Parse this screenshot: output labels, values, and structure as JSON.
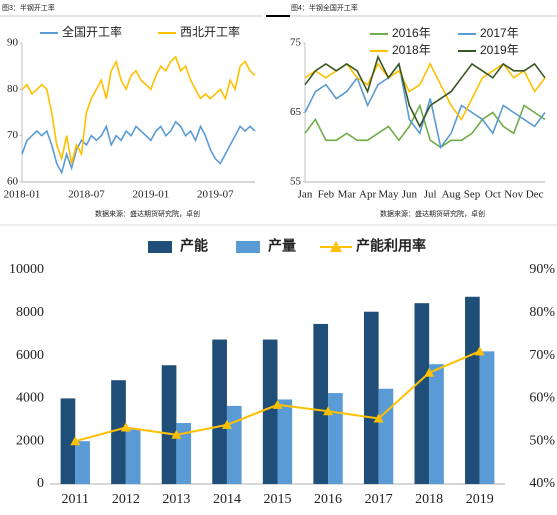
{
  "chart_data": [
    {
      "type": "line",
      "title": "图3：半钢开工率",
      "source": "数据来源：盛达期货研究院，卓创",
      "categories": [
        "2018-01",
        null,
        null,
        null,
        null,
        null,
        null,
        null,
        null,
        null,
        null,
        null,
        null,
        "2018-07",
        null,
        null,
        null,
        null,
        null,
        null,
        null,
        null,
        null,
        null,
        null,
        null,
        "2019-01",
        null,
        null,
        null,
        null,
        null,
        null,
        null,
        null,
        null,
        null,
        null,
        null,
        "2019-07",
        null,
        null,
        null,
        null,
        null,
        null,
        null,
        null
      ],
      "ylim": [
        60,
        90
      ],
      "yticks": [
        60,
        70,
        80,
        90
      ],
      "grid": false,
      "legend": "top",
      "series": [
        {
          "name": "全国开工率",
          "color": "#5b9bd5",
          "values": [
            66,
            69,
            70,
            71,
            70,
            71,
            68,
            64,
            62,
            66,
            63,
            67,
            69,
            68,
            70,
            69,
            70,
            72,
            68,
            70,
            69,
            71,
            70,
            72,
            71,
            70,
            69,
            71,
            72,
            70,
            71,
            73,
            72,
            70,
            71,
            69,
            72,
            70,
            67,
            65,
            64,
            66,
            68,
            70,
            72,
            71,
            72,
            71
          ]
        },
        {
          "name": "西北开工率",
          "color": "#ffc000",
          "values": [
            80,
            81,
            79,
            80,
            81,
            80,
            75,
            68,
            65,
            70,
            64,
            68,
            66,
            75,
            78,
            80,
            82,
            78,
            84,
            86,
            82,
            80,
            83,
            84,
            82,
            81,
            80,
            83,
            85,
            84,
            86,
            87,
            84,
            85,
            82,
            80,
            78,
            79,
            78,
            79,
            80,
            78,
            82,
            80,
            85,
            86,
            84,
            83
          ]
        }
      ]
    },
    {
      "type": "line",
      "title": "图4：半钢全国开工率",
      "source": "数据来源：盛达期货研究院，卓创",
      "categories": [
        "Jan",
        null,
        "Feb",
        null,
        "Mar",
        null,
        "Apr",
        null,
        "May",
        null,
        "Jun",
        null,
        "Jul",
        null,
        "Aug",
        null,
        "Sep",
        null,
        "Oct",
        null,
        "Nov",
        null,
        "Dec",
        null
      ],
      "ylim": [
        55,
        75
      ],
      "yticks": [
        55,
        65,
        75
      ],
      "grid": false,
      "legend": "top",
      "series": [
        {
          "name": "2016年",
          "color": "#70ad47",
          "values": [
            62,
            64,
            61,
            61,
            62,
            61,
            61,
            62,
            63,
            61,
            63,
            66,
            61,
            60,
            61,
            61,
            62,
            64,
            65,
            63,
            62,
            66,
            65,
            64
          ]
        },
        {
          "name": "2017年",
          "color": "#5b9bd5",
          "values": [
            65,
            68,
            69,
            67,
            68,
            70,
            66,
            69,
            70,
            72,
            64,
            62,
            67,
            60,
            62,
            66,
            65,
            64,
            62,
            66,
            65,
            64,
            63,
            65
          ]
        },
        {
          "name": "2018年",
          "color": "#ffc000",
          "values": [
            70,
            71,
            70,
            71,
            72,
            70,
            69,
            72,
            70,
            71,
            68,
            69,
            72,
            69,
            66,
            64,
            67,
            70,
            71,
            72,
            70,
            71,
            68,
            70
          ]
        },
        {
          "name": "2019年",
          "color": "#375623",
          "values": [
            69,
            71,
            72,
            71,
            72,
            71,
            68,
            73,
            70,
            72,
            66,
            63,
            66,
            67,
            68,
            70,
            72,
            71,
            70,
            72,
            71,
            71,
            72,
            70
          ]
        }
      ]
    },
    {
      "type": "bar",
      "categories": [
        "2011",
        "2012",
        "2013",
        "2014",
        "2015",
        "2016",
        "2017",
        "2018",
        "2019"
      ],
      "ylim": [
        0,
        10000
      ],
      "yticks": [
        0,
        2000,
        4000,
        6000,
        8000,
        10000
      ],
      "y2lim": [
        40,
        90
      ],
      "y2ticks": [
        {
          "value": 40,
          "label": "40%"
        },
        {
          "value": 50,
          "label": "50%"
        },
        {
          "value": 60,
          "label": "60%"
        },
        {
          "value": 70,
          "label": "70%"
        },
        {
          "value": 80,
          "label": "80%"
        },
        {
          "value": 90,
          "label": "90%"
        }
      ],
      "grid": false,
      "legend": "top",
      "series": [
        {
          "name": "产能",
          "type": "bar",
          "color": "#1f4e79",
          "values": [
            4000,
            4850,
            5550,
            6750,
            6750,
            7480,
            8050,
            8450,
            8750
          ]
        },
        {
          "name": "产量",
          "type": "bar",
          "color": "#5b9bd5",
          "values": [
            2000,
            2550,
            2850,
            3650,
            3950,
            4250,
            4450,
            5600,
            6200
          ]
        },
        {
          "name": "产能利用率",
          "type": "line",
          "axis": "y2",
          "color": "#ffc000",
          "values": [
            50,
            53.2,
            51.5,
            53.8,
            58.5,
            57,
            55.3,
            66,
            71
          ]
        }
      ]
    }
  ]
}
